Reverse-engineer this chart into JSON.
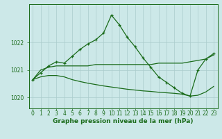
{
  "xlabel": "Graphe pression niveau de la mer (hPa)",
  "ylabel": "",
  "bg_color": "#cce8e8",
  "grid_color": "#aacccc",
  "line1_color": "#1a6b1a",
  "line2_color": "#1a6b1a",
  "line3_color": "#1a6b1a",
  "xlim": [
    -0.5,
    23.5
  ],
  "ylim": [
    1019.6,
    1023.4
  ],
  "yticks": [
    1020,
    1021,
    1022
  ],
  "xticks": [
    0,
    1,
    2,
    3,
    4,
    5,
    6,
    7,
    8,
    9,
    10,
    11,
    12,
    13,
    14,
    15,
    16,
    17,
    18,
    19,
    20,
    21,
    22,
    23
  ],
  "line1_x": [
    0,
    1,
    2,
    3,
    4,
    5,
    6,
    7,
    8,
    9,
    10,
    11,
    12,
    13,
    14,
    15,
    16,
    17,
    18,
    19,
    20,
    21,
    22,
    23
  ],
  "line1_y": [
    1020.65,
    1020.9,
    1021.15,
    1021.3,
    1021.25,
    1021.5,
    1021.75,
    1021.95,
    1022.1,
    1022.35,
    1023.0,
    1022.65,
    1022.2,
    1021.85,
    1021.45,
    1021.1,
    1020.75,
    1020.55,
    1020.35,
    1020.15,
    1020.05,
    1021.0,
    1021.4,
    1021.6
  ],
  "line2_x": [
    0,
    1,
    2,
    3,
    4,
    5,
    6,
    7,
    8,
    9,
    10,
    11,
    12,
    13,
    14,
    15,
    16,
    17,
    18,
    19,
    20,
    21,
    22,
    23
  ],
  "line2_y": [
    1020.65,
    1021.0,
    1021.1,
    1021.15,
    1021.15,
    1021.15,
    1021.15,
    1021.15,
    1021.2,
    1021.2,
    1021.2,
    1021.2,
    1021.2,
    1021.2,
    1021.2,
    1021.2,
    1021.25,
    1021.25,
    1021.25,
    1021.25,
    1021.3,
    1021.35,
    1021.4,
    1021.55
  ],
  "line3_x": [
    0,
    1,
    2,
    3,
    4,
    5,
    6,
    7,
    8,
    9,
    10,
    11,
    12,
    13,
    14,
    15,
    16,
    17,
    18,
    19,
    20,
    21,
    22,
    23
  ],
  "line3_y": [
    1020.65,
    1020.75,
    1020.8,
    1020.8,
    1020.75,
    1020.65,
    1020.58,
    1020.52,
    1020.47,
    1020.42,
    1020.38,
    1020.34,
    1020.3,
    1020.27,
    1020.24,
    1020.22,
    1020.19,
    1020.17,
    1020.15,
    1020.12,
    1020.05,
    1020.08,
    1020.2,
    1020.4
  ],
  "marker": "P",
  "marker_size": 3,
  "linewidth": 0.9,
  "xlabel_fontsize": 6.5,
  "tick_fontsize": 5.5,
  "tick_color": "#1a6b1a",
  "xlabel_color": "#1a6b1a",
  "xlabel_bold": true
}
